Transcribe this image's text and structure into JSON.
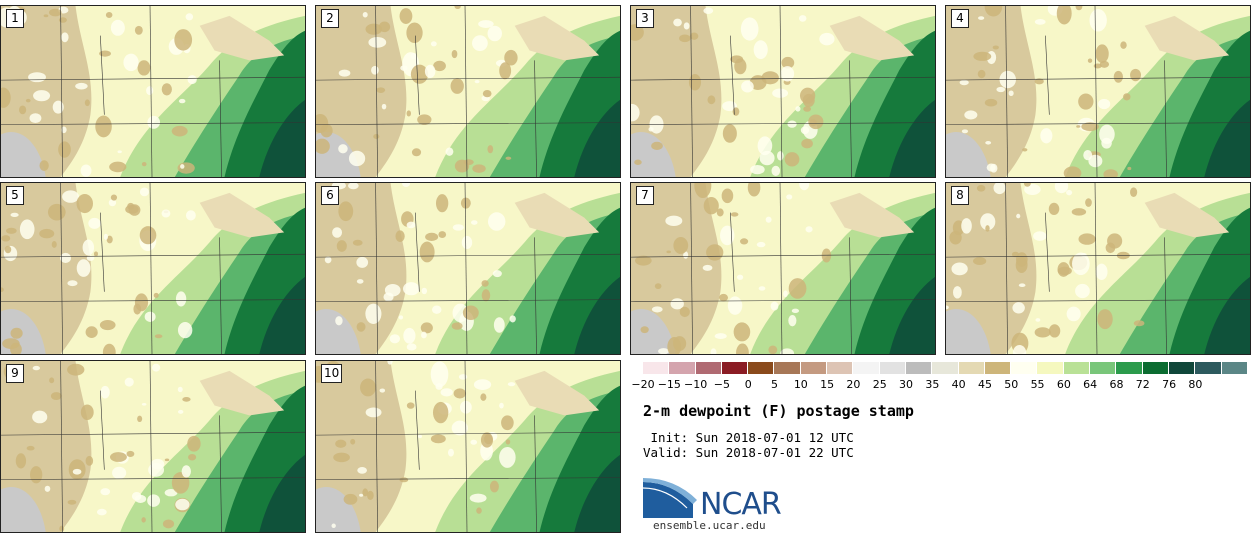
{
  "panels": [
    "1",
    "2",
    "3",
    "4",
    "5",
    "6",
    "7",
    "8",
    "9",
    "10"
  ],
  "colorbar": {
    "ticks": [
      "−20",
      "−15",
      "−10",
      "−5",
      "0",
      "5",
      "10",
      "15",
      "20",
      "25",
      "30",
      "35",
      "40",
      "45",
      "50",
      "55",
      "60",
      "64",
      "68",
      "72",
      "76",
      "80"
    ],
    "colors": [
      "#f8e6ea",
      "#d4a4ad",
      "#b06a72",
      "#8b1c24",
      "#8a4a1c",
      "#a77757",
      "#c49a81",
      "#ddc4b4",
      "#f4f4f4",
      "#e2e2e2",
      "#bcbcbc",
      "#e7e7da",
      "#e4d9b3",
      "#cdb57a",
      "#fffff0",
      "#f5f8bf",
      "#b9e196",
      "#79c67a",
      "#2b9b4c",
      "#0b6c31",
      "#10473a",
      "#2d5a5e",
      "#5b8686"
    ]
  },
  "title": "2-m dewpoint (F) postage stamp",
  "init": " Init: Sun 2018-07-01 12 UTC",
  "valid": "Valid: Sun 2018-07-01 22 UTC",
  "logo": {
    "text": "NCAR",
    "site": "ensemble.ucar.edu"
  }
}
